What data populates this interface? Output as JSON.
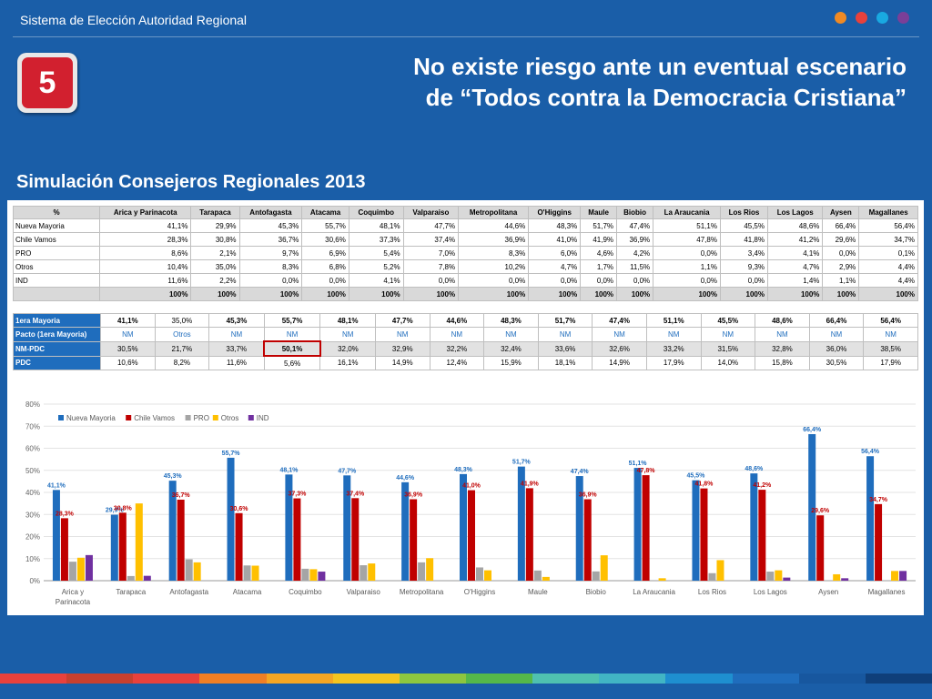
{
  "header": {
    "title": "Sistema de Elección Autoridad Regional",
    "dot_colors": [
      "#f08a24",
      "#e8413c",
      "#19a9e1",
      "#7b3f98"
    ]
  },
  "badge": {
    "number": "5"
  },
  "heading": {
    "line1": "No existe riesgo ante un eventual escenario",
    "line2": "de “Todos contra la Democracia Cristiana”"
  },
  "subtitle": "Simulación Consejeros Regionales 2013",
  "table1": {
    "corner": "%",
    "regions": [
      "Arica y Parinacota",
      "Tarapaca",
      "Antofagasta",
      "Atacama",
      "Coquimbo",
      "Valparaiso",
      "Metropolitana",
      "O'Higgins",
      "Maule",
      "Biobio",
      "La Araucania",
      "Los Rios",
      "Los Lagos",
      "Aysen",
      "Magallanes"
    ],
    "rows": [
      {
        "label": "Nueva Mayoria",
        "values": [
          "41,1%",
          "29,9%",
          "45,3%",
          "55,7%",
          "48,1%",
          "47,7%",
          "44,6%",
          "48,3%",
          "51,7%",
          "47,4%",
          "51,1%",
          "45,5%",
          "48,6%",
          "66,4%",
          "56,4%"
        ]
      },
      {
        "label": "Chile Vamos",
        "values": [
          "28,3%",
          "30,8%",
          "36,7%",
          "30,6%",
          "37,3%",
          "37,4%",
          "36,9%",
          "41,0%",
          "41,9%",
          "36,9%",
          "47,8%",
          "41,8%",
          "41,2%",
          "29,6%",
          "34,7%"
        ]
      },
      {
        "label": "PRO",
        "values": [
          "8,6%",
          "2,1%",
          "9,7%",
          "6,9%",
          "5,4%",
          "7,0%",
          "8,3%",
          "6,0%",
          "4,6%",
          "4,2%",
          "0,0%",
          "3,4%",
          "4,1%",
          "0,0%",
          "0,1%"
        ]
      },
      {
        "label": "Otros",
        "values": [
          "10,4%",
          "35,0%",
          "8,3%",
          "6,8%",
          "5,2%",
          "7,8%",
          "10,2%",
          "4,7%",
          "1,7%",
          "11,5%",
          "1,1%",
          "9,3%",
          "4,7%",
          "2,9%",
          "4,4%"
        ]
      },
      {
        "label": "IND",
        "values": [
          "11,6%",
          "2,2%",
          "0,0%",
          "0,0%",
          "4,1%",
          "0,0%",
          "0,0%",
          "0,0%",
          "0,0%",
          "0,0%",
          "0,0%",
          "0,0%",
          "1,4%",
          "1,1%",
          "4,4%"
        ]
      },
      {
        "label": "",
        "values": [
          "100%",
          "100%",
          "100%",
          "100%",
          "100%",
          "100%",
          "100%",
          "100%",
          "100%",
          "100%",
          "100%",
          "100%",
          "100%",
          "100%",
          "100%"
        ]
      }
    ]
  },
  "table2": {
    "rows": [
      {
        "label": "1era Mayoria",
        "values": [
          "41,1%",
          "35,0%",
          "45,3%",
          "55,7%",
          "48,1%",
          "47,7%",
          "44,6%",
          "48,3%",
          "51,7%",
          "47,4%",
          "51,1%",
          "45,5%",
          "48,6%",
          "66,4%",
          "56,4%"
        ]
      },
      {
        "label": "Pacto (1era Mayoria)",
        "values": [
          "NM",
          "Otros",
          "NM",
          "NM",
          "NM",
          "NM",
          "NM",
          "NM",
          "NM",
          "NM",
          "NM",
          "NM",
          "NM",
          "NM",
          "NM"
        ]
      },
      {
        "label": "NM-PDC",
        "values": [
          "30,5%",
          "21,7%",
          "33,7%",
          "50,1%",
          "32,0%",
          "32,9%",
          "32,2%",
          "32,4%",
          "33,6%",
          "32,6%",
          "33,2%",
          "31,5%",
          "32,8%",
          "36,0%",
          "38,5%"
        ]
      },
      {
        "label": "PDC",
        "values": [
          "10,6%",
          "8,2%",
          "11,6%",
          "5,6%",
          "16,1%",
          "14,9%",
          "12,4%",
          "15,9%",
          "18,1%",
          "14,9%",
          "17,9%",
          "14,0%",
          "15,8%",
          "30,5%",
          "17,9%"
        ]
      }
    ]
  },
  "chart_data": {
    "type": "bar",
    "categories": [
      "Arica y Parinacota",
      "Tarapaca",
      "Antofagasta",
      "Atacama",
      "Coquimbo",
      "Valparaiso",
      "Metropolitana",
      "O'Higgins",
      "Maule",
      "Biobio",
      "La Araucania",
      "Los Rios",
      "Los Lagos",
      "Aysen",
      "Magallanes"
    ],
    "series": [
      {
        "name": "Nueva Mayoria",
        "color": "#1f6dbd",
        "values": [
          41.1,
          29.9,
          45.3,
          55.7,
          48.1,
          47.7,
          44.6,
          48.3,
          51.7,
          47.4,
          51.1,
          45.5,
          48.6,
          66.4,
          56.4
        ],
        "labels": [
          "41,1%",
          "29,9%",
          "45,3%",
          "55,7%",
          "48,1%",
          "47,7%",
          "44,6%",
          "48,3%",
          "51,7%",
          "47,4%",
          "51,1%",
          "45,5%",
          "48,6%",
          "66,4%",
          "56,4%"
        ]
      },
      {
        "name": "Chile Vamos",
        "color": "#c00000",
        "values": [
          28.3,
          30.8,
          36.7,
          30.6,
          37.3,
          37.4,
          36.9,
          41.0,
          41.9,
          36.9,
          47.8,
          41.8,
          41.2,
          29.6,
          34.7
        ],
        "labels": [
          "28,3%",
          "30,8%",
          "36,7%",
          "30,6%",
          "37,3%",
          "37,4%",
          "36,9%",
          "41,0%",
          "41,9%",
          "36,9%",
          "47,8%",
          "41,8%",
          "41,2%",
          "29,6%",
          "34,7%"
        ]
      },
      {
        "name": "PRO",
        "color": "#a5a5a5",
        "values": [
          8.6,
          2.1,
          9.7,
          6.9,
          5.4,
          7.0,
          8.3,
          6.0,
          4.6,
          4.2,
          0.0,
          3.4,
          4.1,
          0.0,
          0.1
        ]
      },
      {
        "name": "Otros",
        "color": "#ffc000",
        "values": [
          10.4,
          35.0,
          8.3,
          6.8,
          5.2,
          7.8,
          10.2,
          4.7,
          1.7,
          11.5,
          1.1,
          9.3,
          4.7,
          2.9,
          4.4
        ]
      },
      {
        "name": "IND",
        "color": "#7030a0",
        "values": [
          11.6,
          2.2,
          0.0,
          0.0,
          4.1,
          0.0,
          0.0,
          0.0,
          0.0,
          0.0,
          0.0,
          0.0,
          1.4,
          1.1,
          4.4
        ]
      }
    ],
    "ylim": [
      0,
      80
    ],
    "yticks": [
      "0%",
      "10%",
      "20%",
      "30%",
      "40%",
      "50%",
      "60%",
      "70%",
      "80%"
    ],
    "legend": "top-left",
    "grid": true
  },
  "footer_stripe_colors": [
    "#e8413c",
    "#c8402f",
    "#e8413c",
    "#f07f24",
    "#f5a623",
    "#f5c51f",
    "#8dc63f",
    "#55b84a",
    "#4fc1b0",
    "#41b5c4",
    "#1e8fd0",
    "#1f6dbd",
    "#17579f",
    "#0f3f7a"
  ]
}
